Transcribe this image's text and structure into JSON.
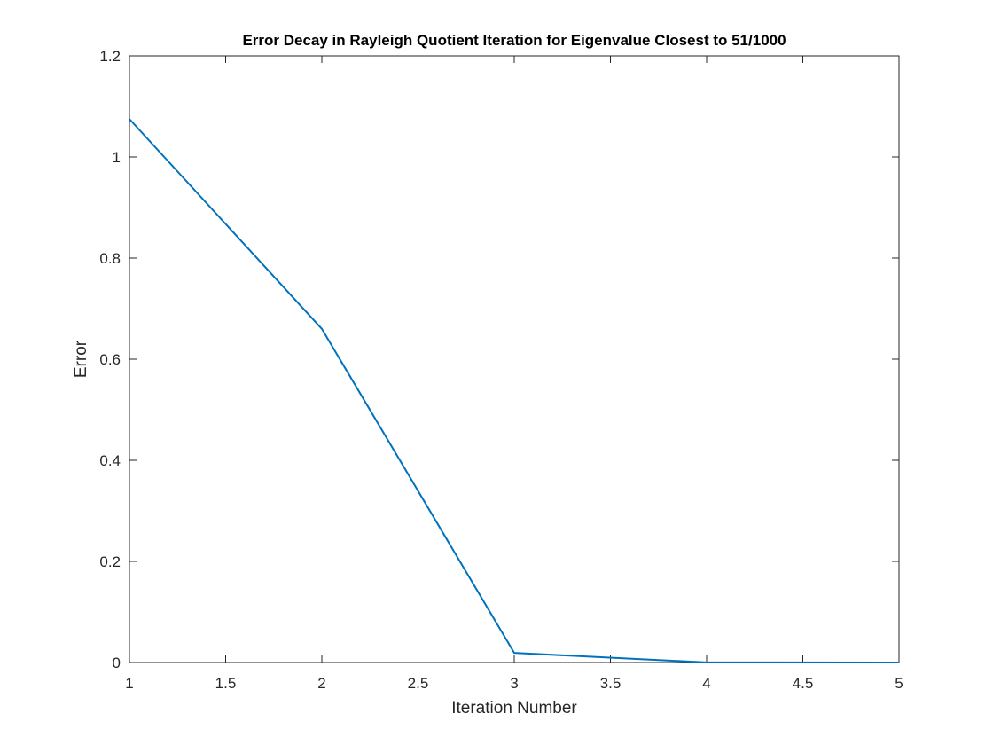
{
  "chart_data": {
    "type": "line",
    "title": "Error Decay in Rayleigh Quotient Iteration for Eigenvalue Closest to 51/1000",
    "xlabel": "Iteration Number",
    "ylabel": "Error",
    "xlim": [
      1,
      5
    ],
    "ylim": [
      0,
      1.2
    ],
    "x_ticks": [
      "1",
      "1.5",
      "2",
      "2.5",
      "3",
      "3.5",
      "4",
      "4.5",
      "5"
    ],
    "y_ticks": [
      "0",
      "0.2",
      "0.4",
      "0.6",
      "0.8",
      "1",
      "1.2"
    ],
    "grid": false,
    "legend": "none",
    "series": [
      {
        "color": "#0072BD",
        "x": [
          1,
          2,
          3,
          4,
          5
        ],
        "y": [
          1.075,
          0.66,
          0.019,
          0.0002,
          0.0
        ]
      }
    ]
  }
}
